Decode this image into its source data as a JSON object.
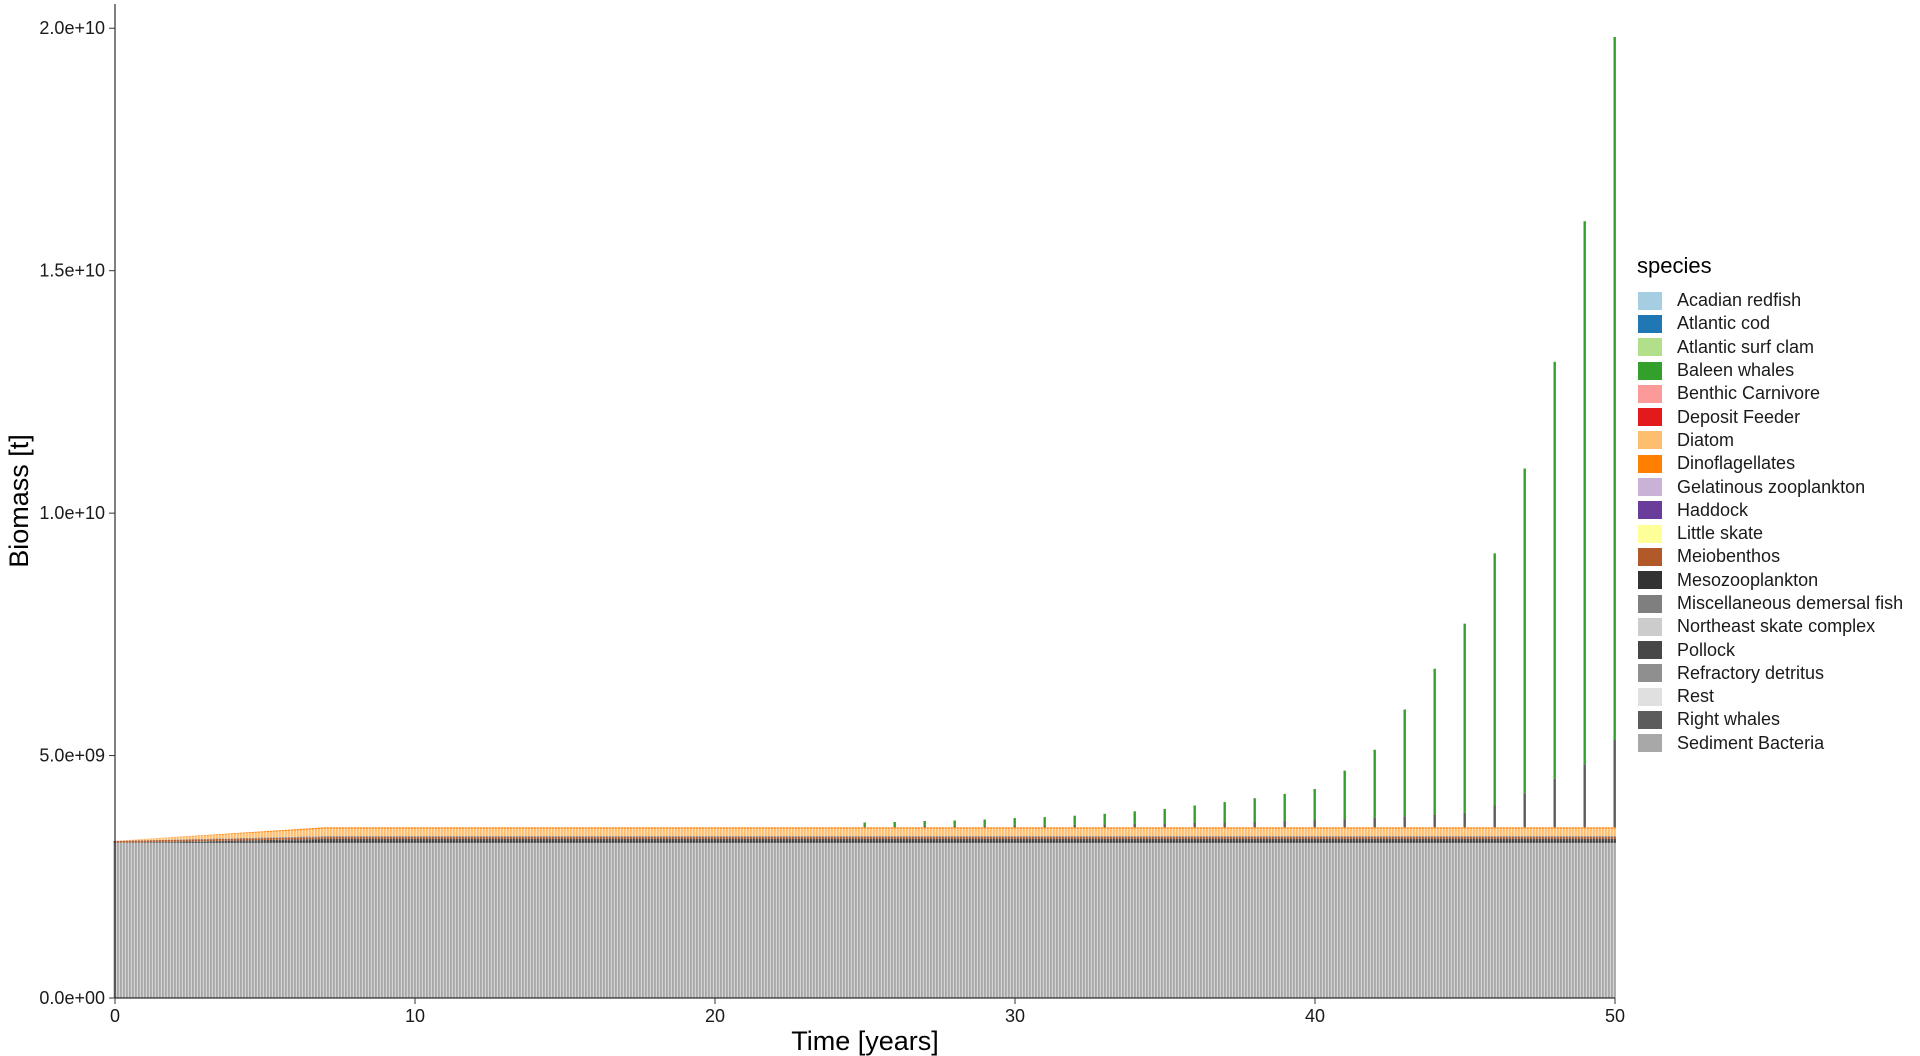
{
  "chart_data": {
    "type": "bar",
    "stacked": true,
    "xlabel": "Time [years]",
    "ylabel": "Biomass [t]",
    "xlim": [
      0,
      50
    ],
    "ylim": [
      0,
      20500000000
    ],
    "x_ticks": [
      0,
      10,
      20,
      30,
      40,
      50
    ],
    "x_tick_labels": [
      "0",
      "10",
      "20",
      "30",
      "40",
      "50"
    ],
    "y_ticks": [
      0,
      5000000000,
      10000000000,
      15000000000,
      20000000000
    ],
    "y_tick_labels": [
      "0.0e+00",
      "5.0e+09",
      "1.0e+10",
      "1.5e+10",
      "2.0e+10"
    ],
    "grid": false,
    "legend": {
      "title": "species",
      "position": "right",
      "entries": [
        {
          "name": "Acadian redfish",
          "color": "#A6CEE3"
        },
        {
          "name": "Atlantic cod",
          "color": "#1F78B4"
        },
        {
          "name": "Atlantic surf clam",
          "color": "#B2DF8A"
        },
        {
          "name": "Baleen whales",
          "color": "#33A02C"
        },
        {
          "name": "Benthic Carnivore",
          "color": "#FB9A99"
        },
        {
          "name": "Deposit Feeder",
          "color": "#E31A1C"
        },
        {
          "name": "Diatom",
          "color": "#FDBF6F"
        },
        {
          "name": "Dinoflagellates",
          "color": "#FF7F00"
        },
        {
          "name": "Gelatinous zooplankton",
          "color": "#CAB2D6"
        },
        {
          "name": "Haddock",
          "color": "#6A3D9A"
        },
        {
          "name": "Little skate",
          "color": "#FFFF99"
        },
        {
          "name": "Meiobenthos",
          "color": "#B15928"
        },
        {
          "name": "Mesozooplankton",
          "color": "#333333"
        },
        {
          "name": "Miscellaneous demersal fish",
          "color": "#7F7F7F"
        },
        {
          "name": "Northeast skate complex",
          "color": "#CCCCCC"
        },
        {
          "name": "Pollock",
          "color": "#474747"
        },
        {
          "name": "Refractory detritus",
          "color": "#8F8F8F"
        },
        {
          "name": "Rest",
          "color": "#E0E0E0"
        },
        {
          "name": "Right whales",
          "color": "#5C5C5C"
        },
        {
          "name": "Sediment Bacteria",
          "color": "#A8A8A8"
        }
      ]
    },
    "time_step_years": 0.1,
    "base_biomass": {
      "Sediment Bacteria": 3200000000,
      "Meiobenthos": 40000000,
      "Mesozooplankton": 50000000,
      "Pollock": 30000000,
      "Diatom": 150000000,
      "Dinoflagellates": 30000000,
      "Refractory detritus": 20000000
    },
    "baleen_whales_peaks": {
      "years": [
        25,
        26,
        27,
        28,
        29,
        30,
        31,
        32,
        33,
        34,
        35,
        36,
        37,
        38,
        39,
        40,
        41,
        42,
        43,
        44,
        45,
        46,
        47,
        48,
        49,
        50
      ],
      "baleen_whales": [
        80000000,
        90000000,
        100000000,
        110000000,
        130000000,
        150000000,
        170000000,
        190000000,
        220000000,
        260000000,
        300000000,
        360000000,
        420000000,
        490000000,
        560000000,
        640000000,
        1000000000,
        1400000000,
        2200000000,
        3000000000,
        3900000000,
        5200000000,
        6700000000,
        8600000000,
        11200000000,
        14500000000
      ],
      "right_whales": [
        20000000,
        20000000,
        30000000,
        30000000,
        30000000,
        40000000,
        40000000,
        50000000,
        60000000,
        70000000,
        80000000,
        90000000,
        100000000,
        110000000,
        130000000,
        150000000,
        170000000,
        200000000,
        230000000,
        270000000,
        300000000,
        450000000,
        700000000,
        1000000000,
        1300000000,
        1800000000
      ]
    }
  }
}
